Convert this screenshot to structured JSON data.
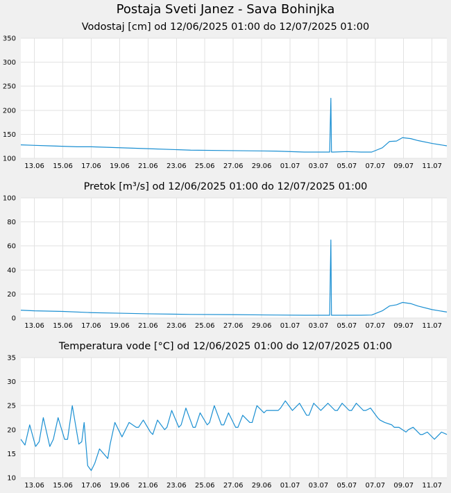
{
  "page_title": "Postaja Sveti Janez - Sava Bohinjka",
  "colors": {
    "line": "#1a8fd2",
    "plot_bg": "#ffffff",
    "page_bg": "#f0f0f0",
    "grid": "#e2e2e2"
  },
  "chart_data": [
    {
      "type": "line",
      "title": "Vodostaj [cm] od 12/06/2025 01:00 do 12/07/2025 01:00",
      "xlabel": "",
      "ylabel": "",
      "xlim": [
        "2025-06-12T01:00",
        "2025-07-12T01:00"
      ],
      "ylim": [
        100,
        350
      ],
      "yticks": [
        100,
        150,
        200,
        250,
        300,
        350
      ],
      "xticks": [
        "13.06",
        "15.06",
        "17.06",
        "19.06",
        "21.06",
        "23.06",
        "25.06",
        "27.06",
        "29.06",
        "01.07",
        "03.07",
        "05.07",
        "07.07",
        "09.07",
        "11.07"
      ],
      "xtick_dates": [
        "2025-06-13",
        "2025-06-15",
        "2025-06-17",
        "2025-06-19",
        "2025-06-21",
        "2025-06-23",
        "2025-06-25",
        "2025-06-27",
        "2025-06-29",
        "2025-07-01",
        "2025-07-03",
        "2025-07-05",
        "2025-07-07",
        "2025-07-09",
        "2025-07-11"
      ],
      "grid": true,
      "series": [
        {
          "x": [
            "2025-06-12T01:00",
            "2025-06-13T00:00",
            "2025-06-14T00:00",
            "2025-06-16T00:00",
            "2025-06-17T00:00",
            "2025-06-19T00:00",
            "2025-06-21T00:00",
            "2025-06-24T00:00",
            "2025-06-27T00:00",
            "2025-06-30T00:00",
            "2025-07-02T00:00",
            "2025-07-03T19:00",
            "2025-07-03T20:00",
            "2025-07-03T21:00",
            "2025-07-03T22:00",
            "2025-07-03T23:00",
            "2025-07-04T01:00",
            "2025-07-05T00:00",
            "2025-07-06T00:00",
            "2025-07-06T18:00",
            "2025-07-07T12:00",
            "2025-07-08T00:00",
            "2025-07-08T12:00",
            "2025-07-08T22:00",
            "2025-07-09T12:00",
            "2025-07-10T00:00",
            "2025-07-11T00:00",
            "2025-07-12T01:00"
          ],
          "y": [
            128,
            127,
            126,
            124,
            124,
            122,
            120,
            117,
            116,
            115,
            113,
            113,
            170,
            225,
            113,
            113,
            113,
            114,
            113,
            113,
            122,
            135,
            136,
            143,
            141,
            137,
            131,
            126
          ]
        }
      ]
    },
    {
      "type": "line",
      "title": "Pretok [m³/s] od 12/06/2025 01:00 do 12/07/2025 01:00",
      "xlabel": "",
      "ylabel": "",
      "xlim": [
        "2025-06-12T01:00",
        "2025-07-12T01:00"
      ],
      "ylim": [
        0,
        100
      ],
      "yticks": [
        0,
        20,
        40,
        60,
        80,
        100
      ],
      "xticks": [
        "13.06",
        "15.06",
        "17.06",
        "19.06",
        "21.06",
        "23.06",
        "25.06",
        "27.06",
        "29.06",
        "01.07",
        "03.07",
        "05.07",
        "07.07",
        "09.07",
        "11.07"
      ],
      "xtick_dates": [
        "2025-06-13",
        "2025-06-15",
        "2025-06-17",
        "2025-06-19",
        "2025-06-21",
        "2025-06-23",
        "2025-06-25",
        "2025-06-27",
        "2025-06-29",
        "2025-07-01",
        "2025-07-03",
        "2025-07-05",
        "2025-07-07",
        "2025-07-09",
        "2025-07-11"
      ],
      "grid": true,
      "series": [
        {
          "x": [
            "2025-06-12T01:00",
            "2025-06-13T00:00",
            "2025-06-15T00:00",
            "2025-06-17T00:00",
            "2025-06-19T00:00",
            "2025-06-21T00:00",
            "2025-06-24T00:00",
            "2025-06-27T00:00",
            "2025-06-30T00:00",
            "2025-07-02T00:00",
            "2025-07-03T19:00",
            "2025-07-03T20:00",
            "2025-07-03T21:00",
            "2025-07-03T22:00",
            "2025-07-03T23:00",
            "2025-07-04T01:00",
            "2025-07-06T00:00",
            "2025-07-06T18:00",
            "2025-07-07T12:00",
            "2025-07-08T00:00",
            "2025-07-08T12:00",
            "2025-07-08T22:00",
            "2025-07-09T12:00",
            "2025-07-10T00:00",
            "2025-07-11T00:00",
            "2025-07-12T01:00"
          ],
          "y": [
            6.5,
            6,
            5.5,
            4.5,
            4,
            3.5,
            3,
            2.8,
            2.5,
            2.3,
            2.3,
            34,
            65,
            2.3,
            2.3,
            2.3,
            2.3,
            2.5,
            6,
            10,
            11,
            13,
            12,
            10,
            7,
            5
          ]
        }
      ]
    },
    {
      "type": "line",
      "title": "Temperatura vode [°C] od 12/06/2025 01:00 do 12/07/2025 01:00",
      "xlabel": "",
      "ylabel": "",
      "xlim": [
        "2025-06-12T01:00",
        "2025-07-12T01:00"
      ],
      "ylim": [
        10,
        35
      ],
      "yticks": [
        10,
        15,
        20,
        25,
        30,
        35
      ],
      "xticks": [
        "13.06",
        "15.06",
        "17.06",
        "19.06",
        "21.06",
        "23.06",
        "25.06",
        "27.06",
        "29.06",
        "01.07",
        "03.07",
        "05.07",
        "07.07",
        "09.07",
        "11.07"
      ],
      "xtick_dates": [
        "2025-06-13",
        "2025-06-15",
        "2025-06-17",
        "2025-06-19",
        "2025-06-21",
        "2025-06-23",
        "2025-06-25",
        "2025-06-27",
        "2025-06-29",
        "2025-07-01",
        "2025-07-03",
        "2025-07-05",
        "2025-07-07",
        "2025-07-09",
        "2025-07-11"
      ],
      "grid": true,
      "series": [
        {
          "x": [
            "2025-06-12T01:00",
            "2025-06-12T08:00",
            "2025-06-12T16:00",
            "2025-06-13T02:00",
            "2025-06-13T08:00",
            "2025-06-13T15:00",
            "2025-06-14T02:00",
            "2025-06-14T08:00",
            "2025-06-14T16:00",
            "2025-06-15T03:00",
            "2025-06-15T08:00",
            "2025-06-15T16:00",
            "2025-06-16T03:00",
            "2025-06-16T08:00",
            "2025-06-16T12:00",
            "2025-06-16T18:00",
            "2025-06-17T00:00",
            "2025-06-17T06:00",
            "2025-06-17T14:00",
            "2025-06-18T04:00",
            "2025-06-18T08:00",
            "2025-06-18T16:00",
            "2025-06-19T04:00",
            "2025-06-19T08:00",
            "2025-06-19T16:00",
            "2025-06-20T04:00",
            "2025-06-20T08:00",
            "2025-06-20T16:00",
            "2025-06-21T04:00",
            "2025-06-21T08:00",
            "2025-06-21T16:00",
            "2025-06-22T04:00",
            "2025-06-22T08:00",
            "2025-06-22T16:00",
            "2025-06-23T04:00",
            "2025-06-23T08:00",
            "2025-06-23T16:00",
            "2025-06-24T04:00",
            "2025-06-24T08:00",
            "2025-06-24T16:00",
            "2025-06-25T04:00",
            "2025-06-25T08:00",
            "2025-06-25T16:00",
            "2025-06-26T04:00",
            "2025-06-26T08:00",
            "2025-06-26T16:00",
            "2025-06-27T04:00",
            "2025-06-27T08:00",
            "2025-06-27T16:00",
            "2025-06-28T04:00",
            "2025-06-28T08:00",
            "2025-06-28T16:00",
            "2025-06-29T04:00",
            "2025-06-29T08:00",
            "2025-06-29T16:00",
            "2025-06-30T04:00",
            "2025-06-30T08:00",
            "2025-06-30T16:00",
            "2025-07-01T04:00",
            "2025-07-01T08:00",
            "2025-07-01T16:00",
            "2025-07-02T04:00",
            "2025-07-02T08:00",
            "2025-07-02T16:00",
            "2025-07-03T04:00",
            "2025-07-03T08:00",
            "2025-07-03T16:00",
            "2025-07-04T04:00",
            "2025-07-04T08:00",
            "2025-07-04T16:00",
            "2025-07-05T04:00",
            "2025-07-05T08:00",
            "2025-07-05T16:00",
            "2025-07-06T04:00",
            "2025-07-06T08:00",
            "2025-07-06T16:00",
            "2025-07-07T04:00",
            "2025-07-07T08:00",
            "2025-07-07T16:00",
            "2025-07-08T04:00",
            "2025-07-08T08:00",
            "2025-07-08T16:00",
            "2025-07-09T04:00",
            "2025-07-09T08:00",
            "2025-07-09T16:00",
            "2025-07-10T04:00",
            "2025-07-10T08:00",
            "2025-07-10T16:00",
            "2025-07-11T04:00",
            "2025-07-11T08:00",
            "2025-07-11T16:00",
            "2025-07-12T01:00"
          ],
          "y": [
            18,
            16.8,
            21,
            16.5,
            17.5,
            22.5,
            16.5,
            18,
            22.5,
            18,
            18,
            25,
            17,
            17.5,
            21.5,
            12.5,
            11.5,
            13,
            16,
            14,
            17,
            21.5,
            18.5,
            19.5,
            21.5,
            20.5,
            20.5,
            22,
            19.5,
            19,
            22,
            20,
            20.5,
            24,
            20.5,
            21,
            24.5,
            20.5,
            20.5,
            23.5,
            21,
            21.5,
            25,
            21,
            21,
            23.5,
            20.5,
            20.5,
            23,
            21.5,
            21.5,
            25,
            23.5,
            24,
            24,
            24,
            24.5,
            26,
            24,
            24.5,
            25.5,
            23,
            23,
            25.5,
            24,
            24.5,
            25.5,
            24,
            24,
            25.5,
            24,
            24,
            25.5,
            24,
            24,
            24.5,
            22.5,
            22,
            21.5,
            21,
            20.5,
            20.5,
            19.5,
            20,
            20.5,
            19,
            19,
            19.5,
            18,
            18.5,
            19.5,
            19
          ]
        }
      ]
    }
  ]
}
